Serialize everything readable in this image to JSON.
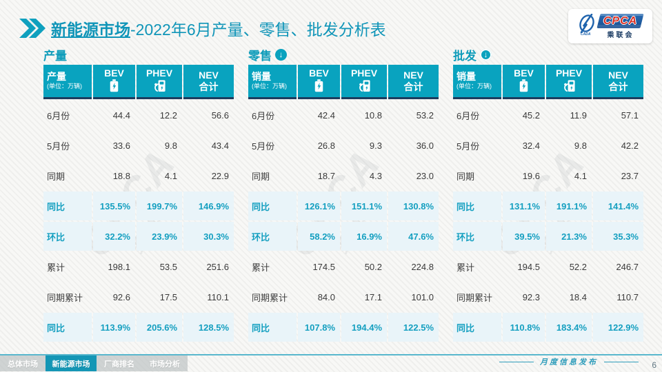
{
  "title": {
    "emphasis": "新能源市场",
    "rest": "-2022年6月产量、零售、批发分析表"
  },
  "logo": {
    "name": "CPCA",
    "subtitle": "乘联会",
    "brand_blue": "#1d5fa6",
    "brand_red": "#d93025"
  },
  "icons": {
    "down_arrow": "↓"
  },
  "watermark": {
    "line1": "CPCA",
    "line2": "乘联会"
  },
  "colors": {
    "accent_teal": "#0aa2be",
    "header_bg": "#09a3bf",
    "header_border_navy": "#1d3c5e",
    "highlight_row_bg": "#e9f4f9",
    "highlight_text": "#149fc0",
    "footer_tab_active": "#1496b5"
  },
  "tables": [
    {
      "section_title": "产量",
      "arrow": null,
      "header": {
        "label": "产量",
        "unit": "(单位：万辆)",
        "col_bev": "BEV",
        "col_phev": "PHEV",
        "col_nev": "NEV\n合计"
      },
      "rows": [
        {
          "label": "6月份",
          "values": [
            "44.4",
            "12.2",
            "56.6"
          ],
          "highlight": false
        },
        {
          "label": "5月份",
          "values": [
            "33.6",
            "9.8",
            "43.4"
          ],
          "highlight": false
        },
        {
          "label": "同期",
          "values": [
            "18.8",
            "4.1",
            "22.9"
          ],
          "highlight": false
        },
        {
          "label": "同比",
          "values": [
            "135.5%",
            "199.7%",
            "146.9%"
          ],
          "highlight": true
        },
        {
          "label": "环比",
          "values": [
            "32.2%",
            "23.9%",
            "30.3%"
          ],
          "highlight": true
        },
        {
          "label": "累计",
          "values": [
            "198.1",
            "53.5",
            "251.6"
          ],
          "highlight": false
        },
        {
          "label": "同期累计",
          "values": [
            "92.6",
            "17.5",
            "110.1"
          ],
          "highlight": false
        },
        {
          "label": "同比",
          "values": [
            "113.9%",
            "205.6%",
            "128.5%"
          ],
          "highlight": true
        }
      ]
    },
    {
      "section_title": "零售",
      "arrow": "solid",
      "header": {
        "label": "销量",
        "unit": "(单位：万辆)",
        "col_bev": "BEV",
        "col_phev": "PHEV",
        "col_nev": "NEV\n合计"
      },
      "rows": [
        {
          "label": "6月份",
          "values": [
            "42.4",
            "10.8",
            "53.2"
          ],
          "highlight": false
        },
        {
          "label": "5月份",
          "values": [
            "26.8",
            "9.3",
            "36.0"
          ],
          "highlight": false
        },
        {
          "label": "同期",
          "values": [
            "18.7",
            "4.3",
            "23.0"
          ],
          "highlight": false
        },
        {
          "label": "同比",
          "values": [
            "126.1%",
            "151.1%",
            "130.8%"
          ],
          "highlight": true
        },
        {
          "label": "环比",
          "values": [
            "58.2%",
            "16.9%",
            "47.6%"
          ],
          "highlight": true
        },
        {
          "label": "累计",
          "values": [
            "174.5",
            "50.2",
            "224.8"
          ],
          "highlight": false
        },
        {
          "label": "同期累计",
          "values": [
            "84.0",
            "17.1",
            "101.0"
          ],
          "highlight": false
        },
        {
          "label": "同比",
          "values": [
            "107.8%",
            "194.4%",
            "122.5%"
          ],
          "highlight": true
        }
      ]
    },
    {
      "section_title": "批发",
      "arrow": "ring",
      "header": {
        "label": "销量",
        "unit": "(单位：万辆)",
        "col_bev": "BEV",
        "col_phev": "PHEV",
        "col_nev": "NEV\n合计"
      },
      "rows": [
        {
          "label": "6月份",
          "values": [
            "45.2",
            "11.9",
            "57.1"
          ],
          "highlight": false
        },
        {
          "label": "5月份",
          "values": [
            "32.4",
            "9.8",
            "42.2"
          ],
          "highlight": false
        },
        {
          "label": "同期",
          "values": [
            "19.6",
            "4.1",
            "23.7"
          ],
          "highlight": false
        },
        {
          "label": "同比",
          "values": [
            "131.1%",
            "191.1%",
            "141.4%"
          ],
          "highlight": true
        },
        {
          "label": "环比",
          "values": [
            "39.5%",
            "21.3%",
            "35.3%"
          ],
          "highlight": true
        },
        {
          "label": "累计",
          "values": [
            "194.5",
            "52.2",
            "246.7"
          ],
          "highlight": false
        },
        {
          "label": "同期累计",
          "values": [
            "92.3",
            "18.4",
            "110.7"
          ],
          "highlight": false
        },
        {
          "label": "同比",
          "values": [
            "110.8%",
            "183.4%",
            "122.9%"
          ],
          "highlight": true
        }
      ]
    }
  ],
  "footer": {
    "tabs": [
      {
        "label": "总体市场",
        "active": false
      },
      {
        "label": "新能源市场",
        "active": true
      },
      {
        "label": "厂商排名",
        "active": false
      },
      {
        "label": "市场分析",
        "active": false
      }
    ],
    "release_label": "月度信息发布",
    "page_number": "6"
  }
}
